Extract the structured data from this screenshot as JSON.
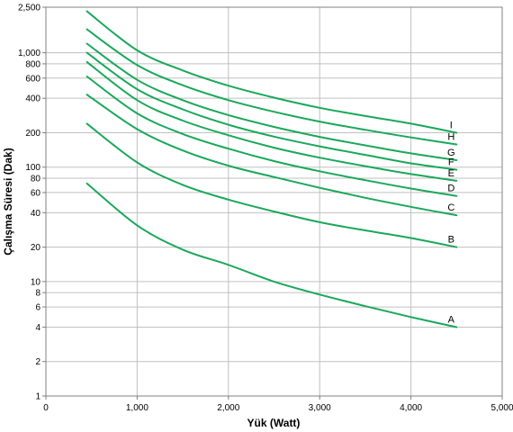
{
  "chart_data": {
    "type": "line",
    "title": "",
    "xlabel": "Yük (Watt)",
    "ylabel": "Çalışma Süresi (Dak)",
    "xlim": [
      0,
      5000
    ],
    "ylim": [
      1,
      2500
    ],
    "yscale": "log",
    "grid": true,
    "line_color": "#1aa85a",
    "x_ticks": [
      0,
      1000,
      2000,
      3000,
      4000,
      5000
    ],
    "x_tick_labels": [
      "0",
      "1,000",
      "2,000",
      "3,000",
      "4,000",
      "5,000"
    ],
    "y_ticks": [
      1,
      2,
      4,
      6,
      8,
      10,
      20,
      40,
      60,
      80,
      100,
      200,
      400,
      600,
      800,
      1000,
      2500
    ],
    "y_tick_labels": [
      "1",
      "2",
      "4",
      "6",
      "8",
      "10",
      "20",
      "40",
      "60",
      "80",
      "100",
      "200",
      "400",
      "600",
      "800",
      "1,000",
      "2,500"
    ],
    "x": [
      450,
      1000,
      1500,
      2000,
      2500,
      3000,
      3500,
      4000,
      4500
    ],
    "series": [
      {
        "name": "A",
        "values": [
          72,
          31,
          19,
          14,
          10,
          7.7,
          6.1,
          4.9,
          4.0
        ]
      },
      {
        "name": "B",
        "values": [
          240,
          110,
          70,
          52,
          41,
          33,
          28,
          24,
          20
        ]
      },
      {
        "name": "C",
        "values": [
          430,
          215,
          140,
          103,
          82,
          66,
          54,
          45,
          38
        ]
      },
      {
        "name": "D",
        "values": [
          620,
          295,
          195,
          145,
          113,
          92,
          77,
          65,
          56
        ]
      },
      {
        "name": "E",
        "values": [
          830,
          385,
          255,
          190,
          148,
          121,
          102,
          87,
          76
        ]
      },
      {
        "name": "F",
        "values": [
          1000,
          480,
          320,
          235,
          185,
          152,
          128,
          108,
          95
        ]
      },
      {
        "name": "G",
        "values": [
          1200,
          580,
          385,
          285,
          225,
          184,
          155,
          132,
          115
        ]
      },
      {
        "name": "H",
        "values": [
          1600,
          780,
          520,
          385,
          305,
          250,
          212,
          182,
          158
        ]
      },
      {
        "name": "I",
        "values": [
          2300,
          1050,
          700,
          515,
          405,
          330,
          280,
          240,
          200
        ]
      }
    ]
  }
}
